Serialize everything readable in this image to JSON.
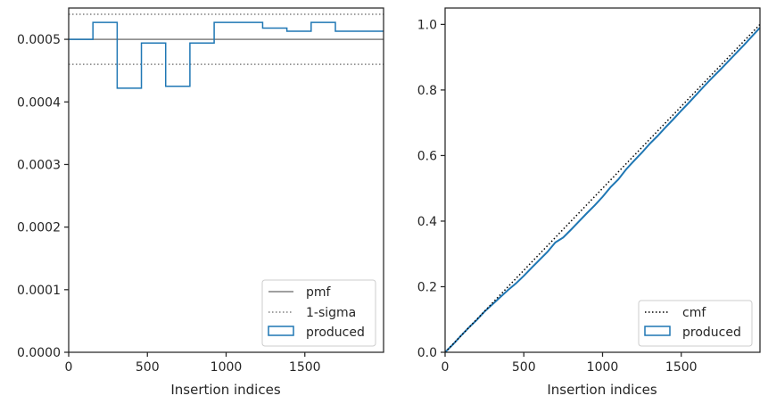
{
  "colors": {
    "produced": "#1f77b4",
    "pmf": "#808080",
    "sigma": "#808080",
    "cmf": "#000000",
    "axes": "#262626"
  },
  "chart_data": [
    {
      "type": "line",
      "style": "step-histogram",
      "xlabel": "Insertion indices",
      "ylabel": "",
      "xlim": [
        0,
        2000
      ],
      "ylim": [
        0,
        0.00055
      ],
      "xticks": [
        0,
        500,
        1000,
        1500
      ],
      "xtick_labels": [
        "0",
        "500",
        "1000",
        "1500"
      ],
      "yticks": [
        0,
        0.0001,
        0.0002,
        0.0003,
        0.0004,
        0.0005
      ],
      "ytick_labels": [
        "0.0000",
        "0.0001",
        "0.0002",
        "0.0003",
        "0.0004",
        "0.0005"
      ],
      "legend_position": "lower-right",
      "legend": [
        "pmf",
        "1-sigma",
        "produced"
      ],
      "pmf": 0.0005,
      "sigma_band": [
        0.00046,
        0.00054
      ],
      "produced_bins": [
        0,
        154,
        308,
        462,
        616,
        770,
        924,
        1078,
        1232,
        1386,
        1540,
        1694,
        2000
      ],
      "produced_values": [
        0.0005,
        0.000527,
        0.000422,
        0.000494,
        0.000425,
        0.000494,
        0.000527,
        0.000527,
        0.000518,
        0.000513,
        0.000527,
        0.000513
      ]
    },
    {
      "type": "line",
      "xlabel": "Insertion indices",
      "ylabel": "",
      "xlim": [
        0,
        2000
      ],
      "ylim": [
        0,
        1.05
      ],
      "xticks": [
        0,
        500,
        1000,
        1500
      ],
      "xtick_labels": [
        "0",
        "500",
        "1000",
        "1500"
      ],
      "yticks": [
        0,
        0.2,
        0.4,
        0.6,
        0.8,
        1.0
      ],
      "ytick_labels": [
        "0.0",
        "0.2",
        "0.4",
        "0.6",
        "0.8",
        "1.0"
      ],
      "legend_position": "lower-right",
      "legend": [
        "cmf",
        "produced"
      ],
      "cmf": {
        "x": [
          0,
          2000
        ],
        "y": [
          0,
          1
        ]
      },
      "produced": {
        "x": [
          0,
          50,
          100,
          150,
          200,
          250,
          300,
          350,
          400,
          450,
          500,
          550,
          600,
          650,
          700,
          750,
          800,
          850,
          900,
          950,
          1000,
          1050,
          1100,
          1150,
          1200,
          1250,
          1300,
          1350,
          1400,
          1450,
          1500,
          1550,
          1600,
          1650,
          1700,
          1750,
          1800,
          1850,
          1900,
          1950,
          2000
        ],
        "y": [
          0,
          0.024,
          0.05,
          0.075,
          0.098,
          0.124,
          0.146,
          0.168,
          0.19,
          0.21,
          0.233,
          0.258,
          0.282,
          0.306,
          0.335,
          0.35,
          0.374,
          0.399,
          0.424,
          0.448,
          0.474,
          0.503,
          0.527,
          0.558,
          0.584,
          0.609,
          0.636,
          0.66,
          0.686,
          0.711,
          0.737,
          0.762,
          0.788,
          0.814,
          0.839,
          0.863,
          0.888,
          0.913,
          0.938,
          0.964,
          0.99
        ]
      }
    }
  ]
}
